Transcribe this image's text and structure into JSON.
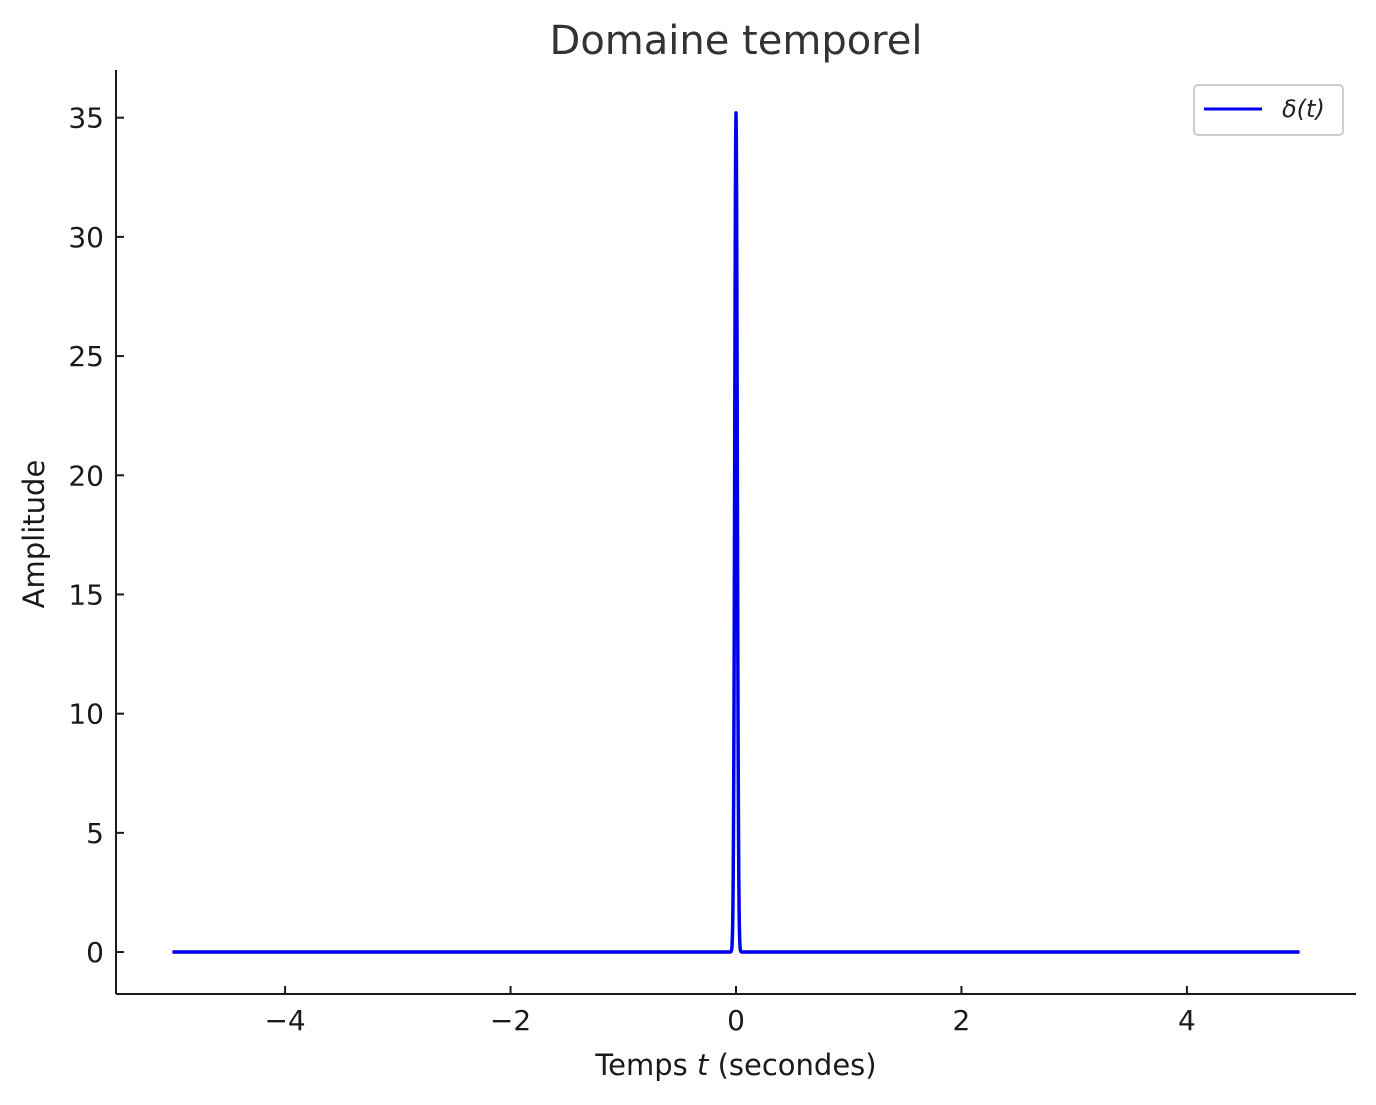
{
  "chart_data": {
    "type": "line",
    "title": "Domaine temporel",
    "xlabel_prefix": "Temps ",
    "xlabel_var": "t",
    "xlabel_suffix": " (secondes)",
    "ylabel": "Amplitude",
    "xlim": [
      -5.5,
      5.5
    ],
    "ylim": [
      -1.76,
      37
    ],
    "x_ticks": [
      -4,
      -2,
      0,
      2,
      4
    ],
    "x_tick_labels": [
      "−4",
      "−2",
      "0",
      "2",
      "4"
    ],
    "y_ticks": [
      0,
      5,
      10,
      15,
      20,
      25,
      30,
      35
    ],
    "y_tick_labels": [
      "0",
      "5",
      "10",
      "15",
      "20",
      "25",
      "30",
      "35"
    ],
    "grid": false,
    "legend_position": "top-right",
    "series": [
      {
        "name": "δ(t)",
        "color": "#0000ee",
        "formula": "gaussian pulse approximating a Dirac delta",
        "x_range": [
          -5,
          5
        ],
        "peak_x": 0,
        "peak_y": 35.2,
        "width_sigma": 0.0113
      }
    ]
  }
}
